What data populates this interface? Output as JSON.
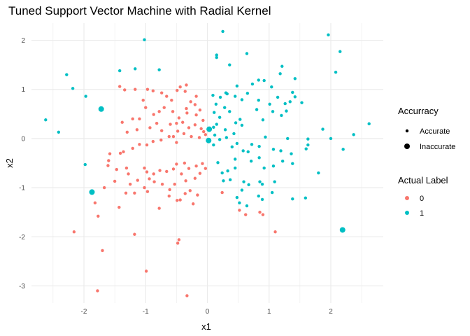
{
  "chart_data": {
    "type": "scatter",
    "title": "Tuned Support Vector Machine with Radial Kernel",
    "xlabel": "x1",
    "ylabel": "x2",
    "xlim": [
      -2.85,
      2.85
    ],
    "ylim": [
      -3.35,
      2.35
    ],
    "x_ticks": [
      -2,
      -1,
      0,
      1,
      2
    ],
    "x_tick_labels": [
      "-2",
      "-1",
      "0",
      "1",
      "2"
    ],
    "y_ticks": [
      -3,
      -2,
      -1,
      0,
      1,
      2
    ],
    "y_tick_labels": [
      "-3",
      "-2",
      "-1",
      "0",
      "1",
      "2"
    ],
    "grid": true,
    "legend_placement": "right",
    "legends": [
      {
        "title": "Accurracy",
        "entries": [
          {
            "label": "Accurate",
            "kind": "size",
            "value": "small"
          },
          {
            "label": "Inaccurate",
            "kind": "size",
            "value": "large"
          }
        ]
      },
      {
        "title": "Actual Label",
        "entries": [
          {
            "label": "0",
            "kind": "color",
            "value": "#F8766D"
          },
          {
            "label": "1",
            "kind": "color",
            "value": "#00BFC4"
          }
        ]
      }
    ],
    "colors": {
      "0": "#F8766D",
      "1": "#00BFC4"
    },
    "series": [
      {
        "name": "0",
        "accurate": [
          [
            -1.42,
            1.06
          ],
          [
            -1.34,
            0.99
          ],
          [
            -1.17,
            1.0
          ],
          [
            -1.04,
            0.78
          ],
          [
            -0.97,
            1.0
          ],
          [
            -0.88,
            0.97
          ],
          [
            -0.74,
            0.93
          ],
          [
            -0.66,
            0.86
          ],
          [
            -0.58,
            0.78
          ],
          [
            -0.49,
            0.98
          ],
          [
            -0.44,
            1.05
          ],
          [
            -0.34,
            1.09
          ],
          [
            -0.36,
            0.96
          ],
          [
            -0.27,
            0.75
          ],
          [
            -0.2,
            0.69
          ],
          [
            -0.12,
            0.58
          ],
          [
            -0.07,
            0.37
          ],
          [
            -0.18,
            0.48
          ],
          [
            -0.33,
            0.52
          ],
          [
            -0.46,
            0.42
          ],
          [
            -0.56,
            0.55
          ],
          [
            -0.7,
            0.63
          ],
          [
            -0.78,
            0.55
          ],
          [
            -0.87,
            0.49
          ],
          [
            -1.0,
            0.63
          ],
          [
            -1.1,
            0.4
          ],
          [
            -1.21,
            0.4
          ],
          [
            -1.38,
            0.33
          ],
          [
            -1.3,
            0.13
          ],
          [
            -1.14,
            0.18
          ],
          [
            -0.93,
            0.22
          ],
          [
            -0.82,
            0.31
          ],
          [
            -0.74,
            0.16
          ],
          [
            -0.6,
            0.29
          ],
          [
            -0.5,
            0.31
          ],
          [
            -0.48,
            0.15
          ],
          [
            -0.4,
            0.33
          ],
          [
            -0.3,
            0.22
          ],
          [
            -0.2,
            0.28
          ],
          [
            -0.1,
            0.2
          ],
          [
            -0.06,
            0.14
          ],
          [
            -0.03,
            0.08
          ],
          [
            -0.13,
            0.02
          ],
          [
            -0.26,
            0.04
          ],
          [
            -0.38,
            0.1
          ],
          [
            -0.5,
            -0.08
          ],
          [
            -0.62,
            0.04
          ],
          [
            -0.75,
            -0.03
          ],
          [
            -0.88,
            -0.06
          ],
          [
            -0.98,
            -0.13
          ],
          [
            -1.1,
            -0.12
          ],
          [
            -1.21,
            -0.2
          ],
          [
            -1.36,
            -0.27
          ],
          [
            -1.41,
            -0.3
          ],
          [
            -1.58,
            -0.31
          ],
          [
            -1.6,
            -0.45
          ],
          [
            -1.61,
            -0.55
          ],
          [
            -1.47,
            -0.63
          ],
          [
            -1.31,
            -0.6
          ],
          [
            -1.28,
            -0.72
          ],
          [
            -1.25,
            -0.93
          ],
          [
            -1.13,
            -0.85
          ],
          [
            -1.02,
            -0.6
          ],
          [
            -0.98,
            -0.68
          ],
          [
            -0.94,
            -0.82
          ],
          [
            -0.87,
            -0.72
          ],
          [
            -0.77,
            -0.65
          ],
          [
            -0.66,
            -0.67
          ],
          [
            -0.55,
            -0.62
          ],
          [
            -0.5,
            -0.52
          ],
          [
            -0.37,
            -0.5
          ],
          [
            -0.3,
            -0.61
          ],
          [
            -0.18,
            -0.56
          ],
          [
            -0.08,
            -0.51
          ],
          [
            -0.03,
            -0.61
          ],
          [
            -0.12,
            -0.71
          ],
          [
            -0.2,
            -0.81
          ],
          [
            -0.35,
            -0.86
          ],
          [
            -0.42,
            -0.72
          ],
          [
            -0.53,
            -0.93
          ],
          [
            -0.61,
            -1.04
          ],
          [
            -0.73,
            -0.93
          ],
          [
            -0.86,
            -0.88
          ],
          [
            -0.97,
            -1.08
          ],
          [
            -1.02,
            -1.0
          ],
          [
            -1.18,
            -1.11
          ],
          [
            -1.32,
            -1.11
          ],
          [
            -1.43,
            -1.4
          ],
          [
            -1.82,
            -1.31
          ],
          [
            -1.77,
            -1.58
          ],
          [
            -1.18,
            -1.95
          ],
          [
            -0.78,
            -1.42
          ],
          [
            -0.62,
            -1.17
          ],
          [
            -0.49,
            -1.26
          ],
          [
            -0.44,
            -1.25
          ],
          [
            -0.36,
            -1.12
          ],
          [
            -0.28,
            -1.06
          ],
          [
            -0.23,
            -1.33
          ],
          [
            -0.16,
            -1.15
          ],
          [
            -0.46,
            -2.06
          ],
          [
            -0.48,
            -2.13
          ],
          [
            -0.33,
            -3.2
          ],
          [
            -0.99,
            -2.7
          ],
          [
            -1.7,
            -2.28
          ],
          [
            -1.78,
            -3.1
          ],
          [
            -2.16,
            -1.9
          ],
          [
            -1.67,
            -1.0
          ],
          [
            -1.5,
            -0.87
          ],
          [
            0.52,
            -1.46
          ],
          [
            0.62,
            -1.55
          ],
          [
            0.85,
            -1.5
          ],
          [
            0.9,
            -1.55
          ],
          [
            1.1,
            -1.9
          ],
          [
            0.24,
            -1.1
          ],
          [
            -0.34,
            0.61
          ],
          [
            -0.18,
            0.86
          ],
          [
            -0.55,
            0.04
          ]
        ],
        "inaccurate": []
      },
      {
        "name": "1",
        "accurate": [
          [
            -1.02,
            2.01
          ],
          [
            0.25,
            2.18
          ],
          [
            0.15,
            1.7
          ],
          [
            0.15,
            1.65
          ],
          [
            0.64,
            1.73
          ],
          [
            0.36,
            1.5
          ],
          [
            1.96,
            2.11
          ],
          [
            2.15,
            1.77
          ],
          [
            2.08,
            1.35
          ],
          [
            1.21,
            1.47
          ],
          [
            1.18,
            1.32
          ],
          [
            0.83,
            1.19
          ],
          [
            0.73,
            1.11
          ],
          [
            0.92,
            1.18
          ],
          [
            1.04,
            1.05
          ],
          [
            1.42,
            1.22
          ],
          [
            1.38,
            0.94
          ],
          [
            0.48,
            1.07
          ],
          [
            0.3,
            0.93
          ],
          [
            0.21,
            0.84
          ],
          [
            0.09,
            0.88
          ],
          [
            0.14,
            0.7
          ],
          [
            0.11,
            0.53
          ],
          [
            0.32,
            0.91
          ],
          [
            0.45,
            0.86
          ],
          [
            0.56,
            0.79
          ],
          [
            0.83,
            0.78
          ],
          [
            0.65,
            0.92
          ],
          [
            1.01,
            0.7
          ],
          [
            1.14,
            0.84
          ],
          [
            1.26,
            0.71
          ],
          [
            1.34,
            0.75
          ],
          [
            1.42,
            0.85
          ],
          [
            1.53,
            0.73
          ],
          [
            0.8,
            0.59
          ],
          [
            0.9,
            0.38
          ],
          [
            1.06,
            0.55
          ],
          [
            1.2,
            0.47
          ],
          [
            1.28,
            0.56
          ],
          [
            0.53,
            0.39
          ],
          [
            0.46,
            0.32
          ],
          [
            0.56,
            0.27
          ],
          [
            0.43,
            0.1
          ],
          [
            0.29,
            0.18
          ],
          [
            0.2,
            0.43
          ],
          [
            0.28,
            0.63
          ],
          [
            0.36,
            0.55
          ],
          [
            0.15,
            0.29
          ],
          [
            0.1,
            0.23
          ],
          [
            0.12,
            0.07
          ],
          [
            0.2,
            -0.02
          ],
          [
            0.31,
            0.02
          ],
          [
            0.48,
            -0.1
          ],
          [
            0.4,
            -0.17
          ],
          [
            0.58,
            -0.25
          ],
          [
            0.66,
            -0.27
          ],
          [
            0.72,
            -0.12
          ],
          [
            0.84,
            -0.16
          ],
          [
            0.94,
            0.03
          ],
          [
            1.07,
            -0.22
          ],
          [
            1.19,
            -0.25
          ],
          [
            1.22,
            -0.46
          ],
          [
            1.36,
            -0.31
          ],
          [
            1.3,
            0.0
          ],
          [
            1.38,
            -0.51
          ],
          [
            1.6,
            -0.21
          ],
          [
            1.63,
            -0.13
          ],
          [
            1.63,
            -0.01
          ],
          [
            1.87,
            0.19
          ],
          [
            2.0,
            0.0
          ],
          [
            2.37,
            0.08
          ],
          [
            2.2,
            -0.22
          ],
          [
            2.62,
            0.3
          ],
          [
            1.8,
            -0.7
          ],
          [
            1.59,
            -1.21
          ],
          [
            1.05,
            -1.1
          ],
          [
            1.09,
            -0.88
          ],
          [
            1.07,
            -0.56
          ],
          [
            0.92,
            -0.6
          ],
          [
            0.85,
            -0.88
          ],
          [
            0.89,
            -0.93
          ],
          [
            0.67,
            -0.94
          ],
          [
            0.59,
            -0.88
          ],
          [
            0.56,
            -1.05
          ],
          [
            0.48,
            -1.2
          ],
          [
            0.52,
            -1.31
          ],
          [
            0.64,
            -1.37
          ],
          [
            0.83,
            -1.17
          ],
          [
            0.89,
            -1.24
          ],
          [
            1.38,
            -1.23
          ],
          [
            0.17,
            -0.49
          ],
          [
            0.24,
            -0.7
          ],
          [
            0.33,
            -0.66
          ],
          [
            0.26,
            -0.86
          ],
          [
            0.37,
            -0.84
          ],
          [
            0.45,
            -0.6
          ],
          [
            0.71,
            -0.46
          ],
          [
            0.84,
            -0.39
          ],
          [
            0.1,
            -0.13
          ],
          [
            0.45,
            -0.42
          ],
          [
            -1.42,
            1.38
          ],
          [
            -1.17,
            1.42
          ],
          [
            -0.78,
            1.4
          ],
          [
            -2.28,
            1.3
          ],
          [
            -2.18,
            1.02
          ],
          [
            -1.97,
            0.86
          ],
          [
            -2.62,
            0.38
          ],
          [
            -2.41,
            0.13
          ],
          [
            -1.98,
            -0.53
          ]
        ],
        "inaccurate": [
          [
            -1.72,
            0.6
          ],
          [
            0.03,
            0.19
          ],
          [
            0.02,
            -0.04
          ],
          [
            -1.87,
            -1.09
          ],
          [
            2.19,
            -1.86
          ]
        ]
      }
    ]
  }
}
